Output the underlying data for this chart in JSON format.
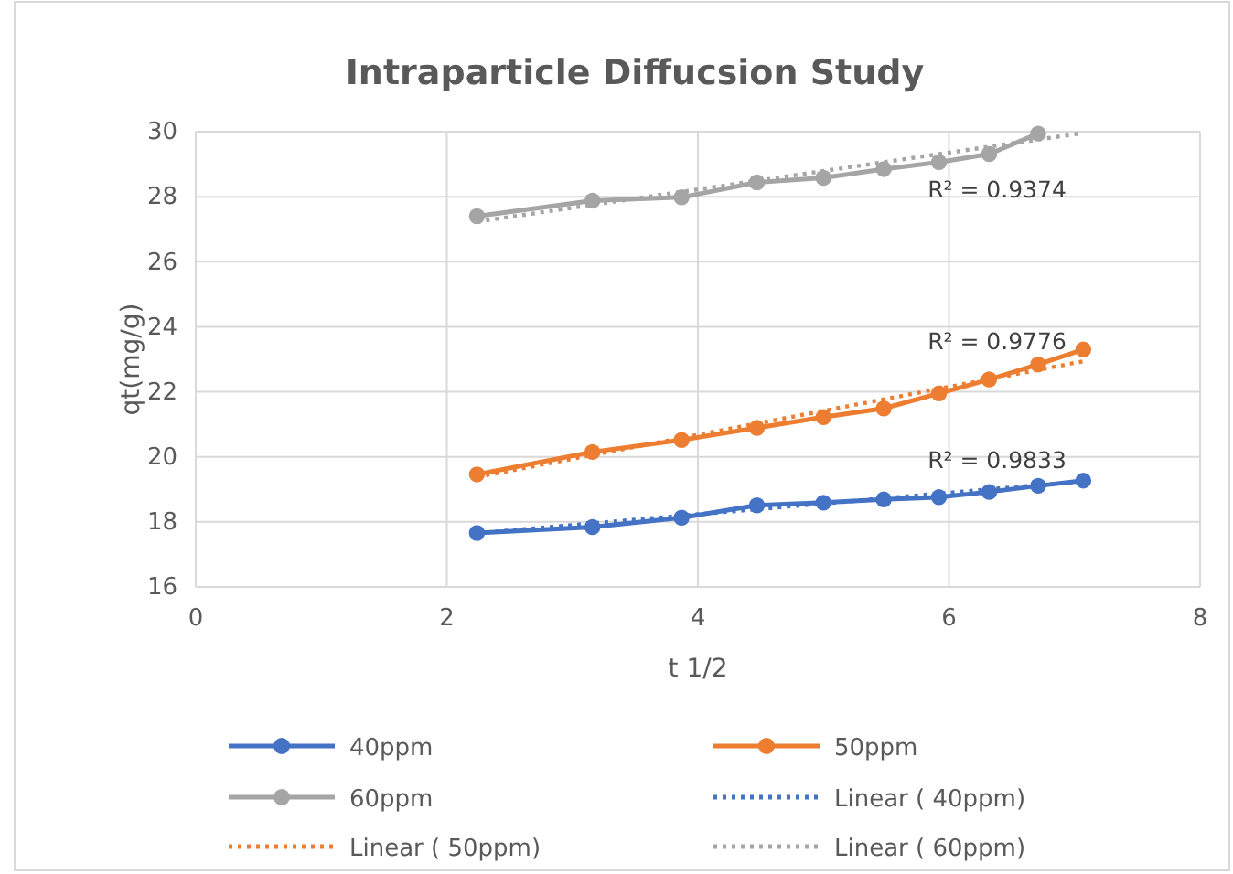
{
  "chart_data": {
    "type": "line",
    "title": "Intraparticle Diffucsion Study",
    "xlabel": "t 1/2",
    "ylabel": "qt(mg/g)",
    "xlim": [
      0,
      8
    ],
    "xticks": [
      0,
      2,
      4,
      6,
      8
    ],
    "ylim": [
      16,
      30
    ],
    "yticks": [
      16,
      18,
      20,
      22,
      24,
      26,
      28,
      30
    ],
    "grid": true,
    "legend": "bottom",
    "marker": "circle",
    "line_style": "solid",
    "series": [
      {
        "name": "40ppm",
        "color": "#4472c4",
        "x": [
          2.24,
          3.16,
          3.87,
          4.47,
          5,
          5.48,
          5.92,
          6.32,
          6.71,
          7.07
        ],
        "values": [
          17.66,
          17.84,
          18.13,
          18.51,
          18.59,
          18.69,
          18.76,
          18.92,
          19.11,
          19.27
        ]
      },
      {
        "name": "50ppm",
        "color": "#ed7d31",
        "x": [
          2.24,
          3.16,
          3.87,
          4.47,
          5,
          5.48,
          5.92,
          6.32,
          6.71,
          7.07
        ],
        "values": [
          19.46,
          20.15,
          20.52,
          20.89,
          21.22,
          21.49,
          21.95,
          22.38,
          22.84,
          23.3
        ]
      },
      {
        "name": "60ppm",
        "color": "#a5a5a5",
        "x": [
          2.24,
          3.16,
          3.87,
          4.47,
          5,
          5.48,
          5.92,
          6.32,
          6.71
        ],
        "values": [
          27.4,
          27.88,
          27.98,
          28.44,
          28.58,
          28.85,
          29.06,
          29.31,
          29.94
        ]
      },
      {
        "name": "Linear ( 40ppm)",
        "color": "#4472c4",
        "marker": "none",
        "line_style": "dotted",
        "x": [
          2.24,
          7.07
        ],
        "values": [
          17.65,
          19.25
        ]
      },
      {
        "name": "Linear ( 50ppm)",
        "color": "#ed7d31",
        "marker": "none",
        "line_style": "dotted",
        "x": [
          2.24,
          7.07
        ],
        "values": [
          19.38,
          22.94
        ]
      },
      {
        "name": "Linear ( 60ppm)",
        "color": "#a5a5a5",
        "marker": "none",
        "line_style": "dotted",
        "x": [
          2.24,
          7.07
        ],
        "values": [
          27.23,
          29.96
        ]
      }
    ],
    "annotations": [
      "R² = 0.9374",
      "R² = 0.9776",
      "R² = 0.9833"
    ]
  }
}
